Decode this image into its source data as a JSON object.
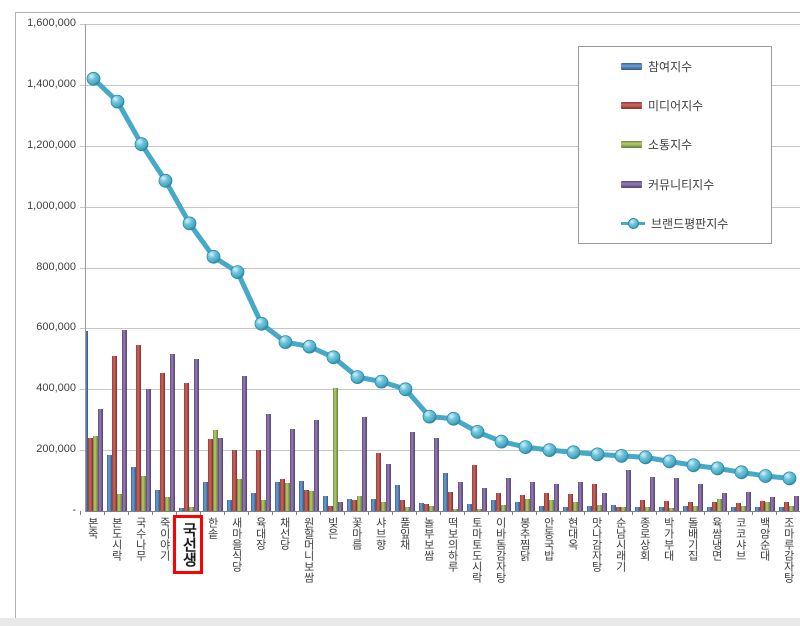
{
  "chart": {
    "y_axis": {
      "tick_labels": [
        "1,600,000",
        "1,400,000",
        "1,200,000",
        "1,000,000",
        "800,000",
        "600,000",
        "400,000",
        "200,000",
        "-"
      ]
    },
    "highlight": {
      "category": "국선생",
      "box_color": "#FF0000"
    },
    "colors": {
      "participation": "#4F81BD",
      "media": "#C0504D",
      "communication": "#9BBB59",
      "community": "#8064A2",
      "brand_reputation_line": "#4BACC6",
      "gridline": "#C6C6C6"
    }
  },
  "chart_data": {
    "type": "bar+line",
    "title": "",
    "xlabel": "",
    "ylabel": "",
    "ylim": [
      0,
      1600000
    ],
    "ytick_step": 200000,
    "grid": true,
    "legend_position": "top-right-box",
    "categories": [
      "본죽",
      "본도시락",
      "국수나무",
      "죽이야기",
      "국선생",
      "한솥",
      "새마을식당",
      "육대장",
      "채선당",
      "원할머니보쌈",
      "빚은",
      "꽃마름",
      "샤브향",
      "풀잎채",
      "놀부보쌈",
      "떡보의하루",
      "토마토도시락",
      "이바돔감자탕",
      "봉추찜닭",
      "안동국밥",
      "현대옥",
      "맛나감자탕",
      "순남시래기",
      "종로상회",
      "박가부대",
      "돌배기집",
      "육쌈냉면",
      "코코샤브",
      "백암순대",
      "조마루감자탕"
    ],
    "series": [
      {
        "name": "참여지수",
        "type": "bar",
        "color": "#4F81BD",
        "values": [
          590000,
          185000,
          145000,
          70000,
          10000,
          95000,
          35000,
          60000,
          95000,
          100000,
          50000,
          40000,
          38000,
          85000,
          25000,
          125000,
          22000,
          35000,
          30000,
          15000,
          12000,
          16000,
          20000,
          12000,
          12000,
          15000,
          12000,
          12000,
          12000,
          12000
        ]
      },
      {
        "name": "미디어지수",
        "type": "bar",
        "color": "#C0504D",
        "values": [
          240000,
          510000,
          545000,
          455000,
          422000,
          235000,
          200000,
          200000,
          105000,
          70000,
          15000,
          35000,
          192000,
          35000,
          22000,
          62000,
          150000,
          60000,
          52000,
          58000,
          55000,
          90000,
          12000,
          35000,
          32000,
          28000,
          28000,
          26000,
          32000,
          28000
        ]
      },
      {
        "name": "소통지수",
        "type": "bar",
        "color": "#9BBB59",
        "values": [
          245000,
          55000,
          115000,
          45000,
          13000,
          265000,
          105000,
          35000,
          92000,
          65000,
          405000,
          50000,
          30000,
          12000,
          16000,
          8000,
          8000,
          20000,
          40000,
          35000,
          28000,
          20000,
          14000,
          14000,
          10000,
          15000,
          40000,
          17000,
          28000,
          18000
        ]
      },
      {
        "name": "커뮤니티지수",
        "type": "bar",
        "color": "#8064A2",
        "values": [
          335000,
          595000,
          400000,
          515000,
          500000,
          240000,
          445000,
          320000,
          268000,
          300000,
          30000,
          310000,
          155000,
          260000,
          240000,
          95000,
          75000,
          110000,
          95000,
          90000,
          95000,
          60000,
          135000,
          112000,
          108000,
          90000,
          60000,
          62000,
          45000,
          50000
        ]
      },
      {
        "name": "브랜드평판지수",
        "type": "line",
        "color": "#4BACC6",
        "values": [
          1420000,
          1345000,
          1205000,
          1085000,
          945000,
          835000,
          785000,
          615000,
          555000,
          540000,
          505000,
          440000,
          425000,
          400000,
          310000,
          303000,
          260000,
          228000,
          210000,
          200000,
          193000,
          186000,
          181000,
          176000,
          163000,
          150000,
          140000,
          127000,
          115000,
          107000
        ]
      }
    ]
  }
}
